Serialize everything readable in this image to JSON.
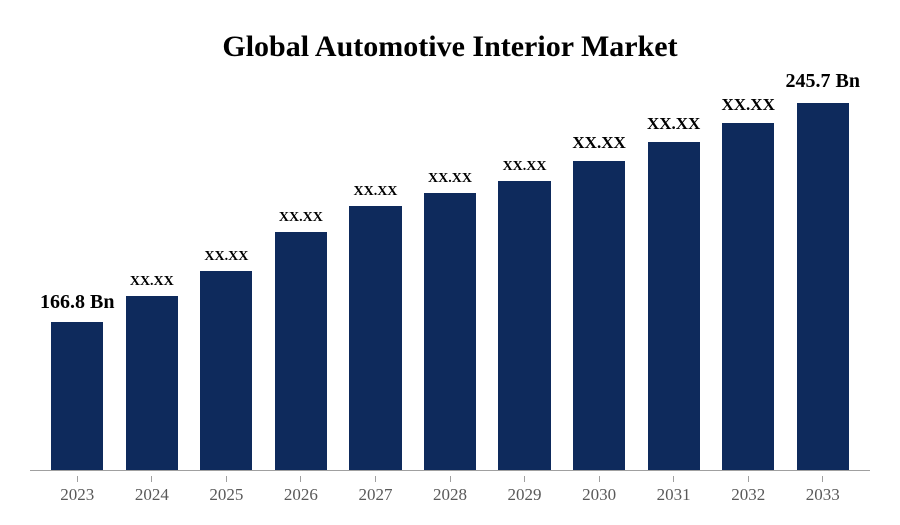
{
  "chart": {
    "type": "bar",
    "title": "Global Automotive Interior Market",
    "title_fontsize": 30,
    "title_color": "#000000",
    "background_color": "#ffffff",
    "bar_color": "#0e2a5c",
    "axis_line_color": "#a0a0a0",
    "xlabel_color": "#595959",
    "xlabel_fontsize": 17,
    "bar_width_ratio": 0.7,
    "ylim_max": 300,
    "categories": [
      "2023",
      "2024",
      "2025",
      "2026",
      "2027",
      "2028",
      "2029",
      "2030",
      "2031",
      "2032",
      "2033"
    ],
    "values": [
      115,
      135,
      155,
      185,
      205,
      215,
      225,
      240,
      255,
      270,
      285
    ],
    "value_labels": [
      "166.8 Bn",
      "XX.XX",
      "XX.XX",
      "XX.XX",
      "XX.XX",
      "XX.XX",
      "XX.XX",
      "XX.XX",
      "XX.XX",
      "XX.XX",
      "245.7 Bn"
    ],
    "label_fontsizes": [
      20,
      14,
      14,
      14,
      14,
      14,
      14,
      17,
      17,
      17,
      20
    ],
    "label_offsets_y": [
      8,
      6,
      6,
      6,
      6,
      6,
      6,
      8,
      8,
      8,
      10
    ]
  }
}
